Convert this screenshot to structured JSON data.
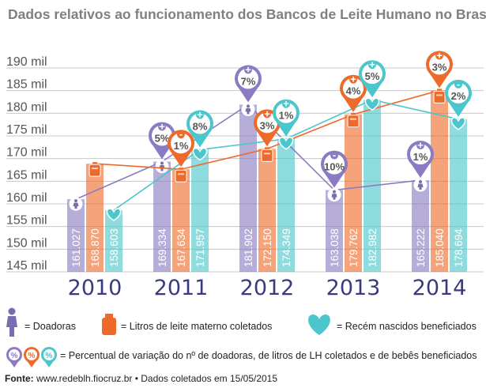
{
  "chart_data": {
    "type": "bar",
    "title": "Dados relativos ao funcionamento dos Bancos de Leite Humano no Brasil",
    "categories": [
      "2010",
      "2011",
      "2012",
      "2013",
      "2014"
    ],
    "y_ticks": [
      "190 mil",
      "185 mil",
      "180 mil",
      "175 mil",
      "170 mil",
      "165 mil",
      "160 mil",
      "155 mil",
      "150 mil",
      "145 mil"
    ],
    "ylim": [
      145000,
      190000
    ],
    "grid": true,
    "series": [
      {
        "name": "Doadoras",
        "color": "#8b7bc2",
        "values": [
          161027,
          169334,
          181902,
          163038,
          165222
        ],
        "labels": [
          "161.027",
          "169.334",
          "181.902",
          "163.038",
          "165.222"
        ],
        "variation": [
          null,
          {
            "sign": "+",
            "value": "5%"
          },
          {
            "sign": "+",
            "value": "7%"
          },
          {
            "sign": "-",
            "value": "10%"
          },
          {
            "sign": "+",
            "value": "1%"
          }
        ]
      },
      {
        "name": "Litros de leite materno coletados",
        "color": "#ee6a2a",
        "values": [
          168870,
          167634,
          172150,
          179762,
          185040
        ],
        "labels": [
          "168.870",
          "167.634",
          "172.150",
          "179.762",
          "185.040"
        ],
        "variation": [
          null,
          {
            "sign": "-",
            "value": "1%"
          },
          {
            "sign": "+",
            "value": "3%"
          },
          {
            "sign": "+",
            "value": "4%"
          },
          {
            "sign": "+",
            "value": "3%"
          }
        ]
      },
      {
        "name": "Recém nascidos beneficiados",
        "color": "#4bc6cc",
        "values": [
          158603,
          171957,
          174349,
          182982,
          178694
        ],
        "labels": [
          "158.603",
          "171.957",
          "174.349",
          "182.982",
          "178.694"
        ],
        "variation": [
          null,
          {
            "sign": "+",
            "value": "8%"
          },
          {
            "sign": "+",
            "value": "1%"
          },
          {
            "sign": "+",
            "value": "5%"
          },
          {
            "sign": "-",
            "value": "2%"
          }
        ]
      }
    ]
  },
  "legend": {
    "donors": "= Doadoras",
    "liters": "= Litros de leite materno coletados",
    "newborns": "= Recém nascidos beneficiados",
    "variation": "= Percentual de variação do nº de doadoras, de litros de LH coletados e de bebês beneficiados",
    "variation_icon_text": "%"
  },
  "source": {
    "label": "Fonte:",
    "text": " www.redeblh.fiocruz.br • Dados coletados em 15/05/2015"
  }
}
